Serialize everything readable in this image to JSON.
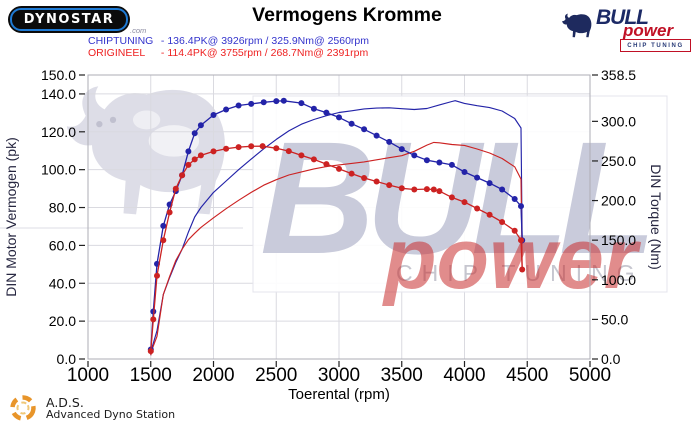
{
  "header": {
    "dynostar_logo_text": "DYNOSTAR",
    "dynostar_domain_suffix": ".com",
    "title": "Vermogens Kromme",
    "bull_logo": {
      "bull": "BULL",
      "power": "power",
      "chip_tuning": "CHIP TUNING"
    },
    "legend": [
      {
        "name": "CHIPTUNING",
        "value_text": "- 136.4PK@ 3926rpm / 325.9Nm@ 2560rpm",
        "color": "#3333cc"
      },
      {
        "name": "ORIGINEEL",
        "value_text": "- 114.4PK@ 3755rpm / 268.7Nm@ 2391rpm",
        "color": "#ee2222"
      }
    ]
  },
  "watermark": {
    "bull": "BULL",
    "power": "power",
    "chip_tuning": "CHIP TUNING"
  },
  "footer": {
    "ads_abbrev": "A.D.S.",
    "ads_name": "Advanced Dyno Station"
  },
  "chart_data": {
    "type": "line",
    "title": "Vermogens Kromme",
    "xlabel": "Toerental (rpm)",
    "ylabel_left": "DIN Motor Vermogen (pk)",
    "ylabel_right": "DIN Torque (Nm)",
    "xlim": [
      1000,
      5000
    ],
    "x_ticks": [
      1000,
      1500,
      2000,
      2500,
      3000,
      3500,
      4000,
      4500,
      5000
    ],
    "ylim_left": [
      0,
      150
    ],
    "y_ticks_left": [
      0,
      20,
      40,
      60,
      80,
      100,
      120,
      140,
      150
    ],
    "ylim_right": [
      0,
      358.5
    ],
    "y_ticks_right": [
      0,
      50,
      100,
      150,
      200,
      250,
      300,
      358.5
    ],
    "grid": true,
    "legend_position": "top-left",
    "peaks": {
      "chiptuning": {
        "power_pk": 136.4,
        "power_rpm": 3926,
        "torque_nm": 325.9,
        "torque_rpm": 2560
      },
      "origineel": {
        "power_pk": 114.4,
        "power_rpm": 3755,
        "torque_nm": 268.7,
        "torque_rpm": 2391
      }
    },
    "series": [
      {
        "name": "CHIPTUNING vermogen (pk)",
        "axis": "left",
        "color": "#2323a8",
        "markers": false,
        "points": [
          [
            1500,
            2
          ],
          [
            1510,
            6
          ],
          [
            1550,
            15
          ],
          [
            1600,
            34
          ],
          [
            1650,
            43
          ],
          [
            1700,
            51
          ],
          [
            1750,
            58
          ],
          [
            1800,
            67
          ],
          [
            1850,
            75
          ],
          [
            1900,
            80
          ],
          [
            2000,
            88
          ],
          [
            2100,
            94
          ],
          [
            2200,
            100
          ],
          [
            2300,
            105.6
          ],
          [
            2400,
            111
          ],
          [
            2500,
            116
          ],
          [
            2600,
            120.5
          ],
          [
            2700,
            124
          ],
          [
            2800,
            126.5
          ],
          [
            2900,
            128.5
          ],
          [
            3000,
            130.2
          ],
          [
            3100,
            131.1
          ],
          [
            3200,
            132.1
          ],
          [
            3300,
            132.5
          ],
          [
            3400,
            132.7
          ],
          [
            3500,
            132.2
          ],
          [
            3600,
            131.8
          ],
          [
            3700,
            132.3
          ],
          [
            3800,
            134.2
          ],
          [
            3900,
            136
          ],
          [
            3926,
            136.4
          ],
          [
            4000,
            135
          ],
          [
            4100,
            133.8
          ],
          [
            4200,
            132.8
          ],
          [
            4300,
            131
          ],
          [
            4400,
            127
          ],
          [
            4450,
            122
          ],
          [
            4460,
            61
          ]
        ]
      },
      {
        "name": "ORIGINEEL vermogen (pk)",
        "axis": "left",
        "color": "#cc2222",
        "markers": false,
        "points": [
          [
            1500,
            2
          ],
          [
            1510,
            5
          ],
          [
            1550,
            12
          ],
          [
            1600,
            34
          ],
          [
            1650,
            43.5
          ],
          [
            1700,
            52
          ],
          [
            1750,
            58
          ],
          [
            1800,
            63
          ],
          [
            1850,
            66.4
          ],
          [
            1900,
            69.5
          ],
          [
            2000,
            74.6
          ],
          [
            2100,
            79.4
          ],
          [
            2200,
            83.8
          ],
          [
            2300,
            88
          ],
          [
            2400,
            91.8
          ],
          [
            2500,
            94.7
          ],
          [
            2600,
            97.2
          ],
          [
            2700,
            98.8
          ],
          [
            2800,
            100.4
          ],
          [
            2900,
            101.6
          ],
          [
            3000,
            102.5
          ],
          [
            3100,
            103.3
          ],
          [
            3200,
            104.1
          ],
          [
            3300,
            105.2
          ],
          [
            3400,
            106.3
          ],
          [
            3500,
            107.4
          ],
          [
            3600,
            109.7
          ],
          [
            3700,
            113
          ],
          [
            3755,
            114.4
          ],
          [
            3800,
            114.2
          ],
          [
            3900,
            113.3
          ],
          [
            4000,
            112.8
          ],
          [
            4100,
            110.9
          ],
          [
            4200,
            108.8
          ],
          [
            4300,
            105.9
          ],
          [
            4400,
            101.5
          ],
          [
            4450,
            95
          ],
          [
            4460,
            48
          ]
        ]
      },
      {
        "name": "CHIPTUNING koppel (Nm)",
        "axis": "right",
        "color": "#2323a8",
        "markers": true,
        "points": [
          [
            1500,
            12
          ],
          [
            1520,
            60
          ],
          [
            1550,
            120
          ],
          [
            1600,
            168
          ],
          [
            1650,
            195
          ],
          [
            1700,
            212
          ],
          [
            1750,
            232
          ],
          [
            1800,
            262
          ],
          [
            1850,
            285
          ],
          [
            1900,
            295
          ],
          [
            2000,
            308
          ],
          [
            2100,
            315
          ],
          [
            2200,
            320
          ],
          [
            2300,
            322
          ],
          [
            2400,
            324
          ],
          [
            2500,
            325.5
          ],
          [
            2560,
            325.9
          ],
          [
            2700,
            323
          ],
          [
            2800,
            316
          ],
          [
            2900,
            311
          ],
          [
            3000,
            305
          ],
          [
            3100,
            297
          ],
          [
            3200,
            290
          ],
          [
            3300,
            282
          ],
          [
            3400,
            274
          ],
          [
            3500,
            265
          ],
          [
            3600,
            257
          ],
          [
            3700,
            251
          ],
          [
            3800,
            248
          ],
          [
            3900,
            245
          ],
          [
            4000,
            236
          ],
          [
            4100,
            229
          ],
          [
            4200,
            222
          ],
          [
            4300,
            214
          ],
          [
            4400,
            202
          ],
          [
            4450,
            193
          ],
          [
            4460,
            150
          ]
        ]
      },
      {
        "name": "ORIGINEEL koppel (Nm)",
        "axis": "right",
        "color": "#cc2222",
        "markers": true,
        "points": [
          [
            1500,
            10
          ],
          [
            1520,
            50
          ],
          [
            1550,
            105
          ],
          [
            1600,
            150
          ],
          [
            1650,
            185
          ],
          [
            1700,
            215
          ],
          [
            1750,
            232
          ],
          [
            1800,
            245
          ],
          [
            1850,
            252
          ],
          [
            1900,
            257
          ],
          [
            2000,
            262
          ],
          [
            2100,
            265.5
          ],
          [
            2200,
            267.5
          ],
          [
            2300,
            268.5
          ],
          [
            2391,
            268.7
          ],
          [
            2500,
            266
          ],
          [
            2600,
            262.5
          ],
          [
            2700,
            257
          ],
          [
            2800,
            252
          ],
          [
            2900,
            246
          ],
          [
            3000,
            240
          ],
          [
            3100,
            234
          ],
          [
            3200,
            228.5
          ],
          [
            3300,
            224
          ],
          [
            3400,
            219.5
          ],
          [
            3500,
            215.5
          ],
          [
            3600,
            214
          ],
          [
            3700,
            214.5
          ],
          [
            3755,
            214
          ],
          [
            3800,
            212
          ],
          [
            3900,
            204
          ],
          [
            4000,
            198
          ],
          [
            4100,
            190
          ],
          [
            4200,
            182
          ],
          [
            4300,
            173
          ],
          [
            4400,
            162
          ],
          [
            4450,
            150
          ],
          [
            4460,
            113
          ]
        ]
      }
    ]
  }
}
